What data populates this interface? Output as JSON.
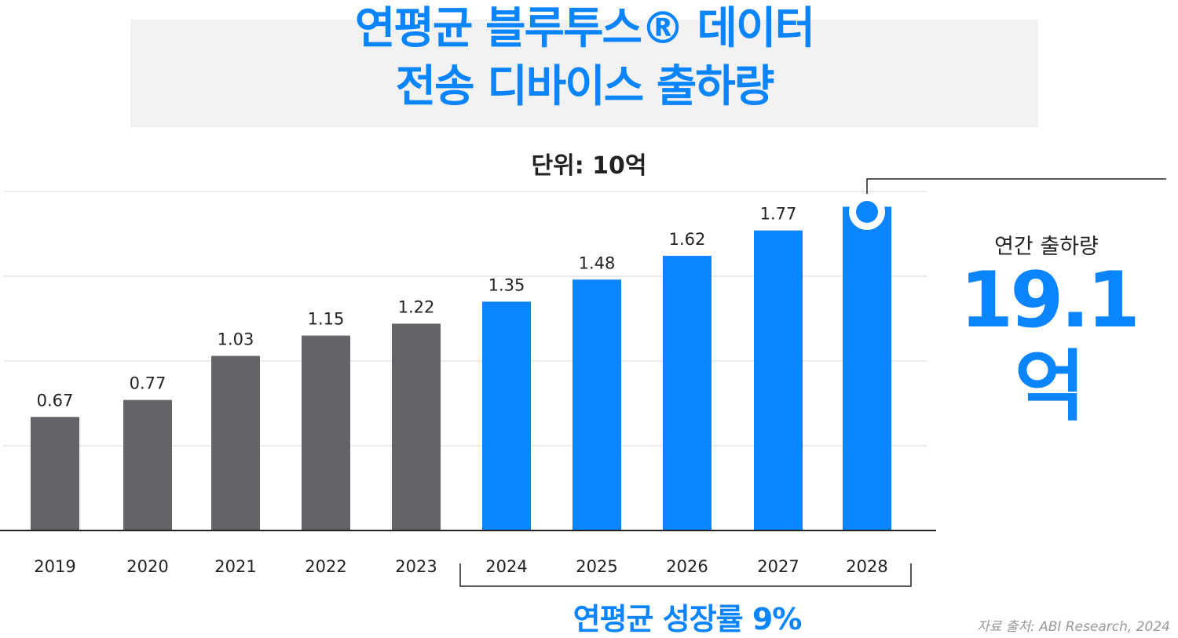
{
  "title_lines": [
    "연평균 블루투스® 데이터",
    "전송 디바이스 출하량"
  ],
  "unit_label": "단위: 10억",
  "annual": {
    "label": "연간 출하량",
    "value": "19.1억"
  },
  "cagr_label": "연평균 성장률 9%",
  "source": "자료 출처: ABI Research, 2024",
  "colors": {
    "historical": "#636468",
    "forecast": "#0a84ff",
    "accent": "#0a84ff"
  },
  "chart_data": {
    "type": "bar",
    "categories": [
      "2019",
      "2020",
      "2021",
      "2022",
      "2023",
      "2024",
      "2025",
      "2026",
      "2027",
      "2028"
    ],
    "values": [
      0.67,
      0.77,
      1.03,
      1.15,
      1.22,
      1.35,
      1.48,
      1.62,
      1.77,
      1.91
    ],
    "value_labels": [
      "0.67",
      "0.77",
      "1.03",
      "1.15",
      "1.22",
      "1.35",
      "1.48",
      "1.62",
      "1.77",
      ""
    ],
    "forecast_start_index": 5,
    "ylim": [
      0,
      2.0
    ],
    "grid": true,
    "title": "",
    "xlabel": "",
    "ylabel": ""
  }
}
